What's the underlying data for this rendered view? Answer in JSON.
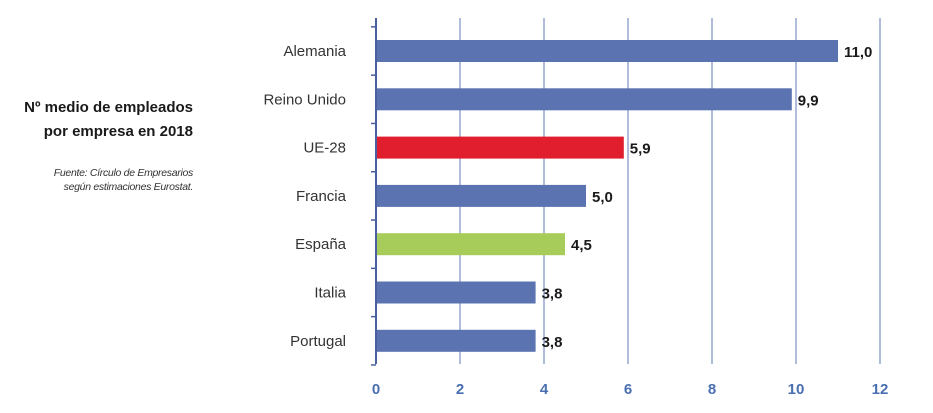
{
  "chart_data": {
    "type": "bar",
    "orientation": "horizontal",
    "title_lines": [
      "Nº medio de empleados",
      "por empresa en 2018"
    ],
    "source_lines": [
      "Fuente: Círculo de Empresarios",
      "según estimaciones Eurostat."
    ],
    "categories": [
      "Alemania",
      "Reino Unido",
      "UE-28",
      "Francia",
      "España",
      "Italia",
      "Portugal"
    ],
    "values": [
      11.0,
      9.9,
      5.9,
      5.0,
      4.5,
      3.8,
      3.8
    ],
    "value_labels": [
      "11,0",
      "9,9",
      "5,9",
      "5,0",
      "4,5",
      "3,8",
      "3,8"
    ],
    "bar_colors": [
      "#5b73b0",
      "#5b73b0",
      "#e01e2e",
      "#5b73b0",
      "#a8cc5a",
      "#5b73b0",
      "#5b73b0"
    ],
    "xlim": [
      0,
      12
    ],
    "xticks": [
      0,
      2,
      4,
      6,
      8,
      10,
      12
    ],
    "xlabel": "",
    "ylabel": "",
    "grid": "vertical",
    "colors": {
      "axis": "#4a5fa0",
      "grid": "#7a8fc4",
      "tick_text": "#4a6fb0"
    }
  }
}
